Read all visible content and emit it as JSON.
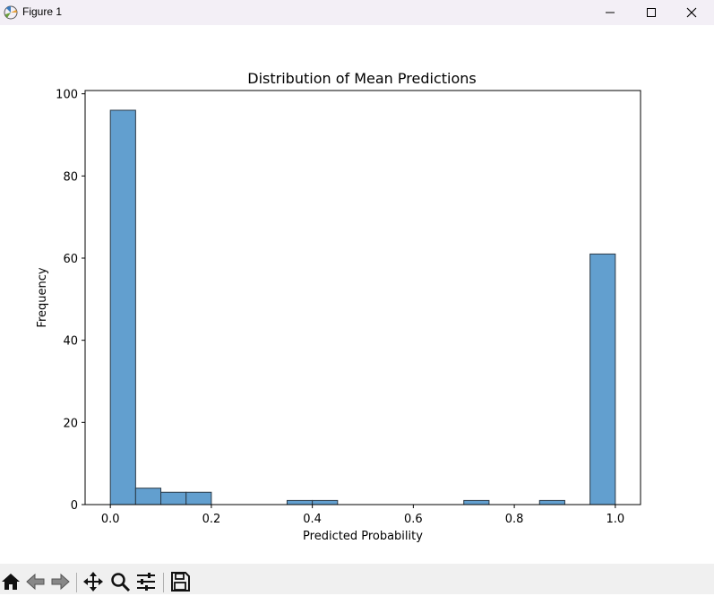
{
  "window": {
    "title": "Figure 1"
  },
  "toolbar": {
    "buttons": [
      "home-icon",
      "back-arrow-icon",
      "forward-arrow-icon",
      "pan-icon",
      "zoom-icon",
      "configure-subplots-icon",
      "save-icon"
    ]
  },
  "colors": {
    "bar_fill": "#629fcf",
    "bar_edge": "#2b3a47"
  },
  "chart_data": {
    "type": "bar",
    "title": "Distribution of Mean Predictions",
    "xlabel": "Predicted Probability",
    "ylabel": "Frequency",
    "xlim": [
      -0.05,
      1.05
    ],
    "ylim": [
      0,
      100.8
    ],
    "x_ticks": [
      0.0,
      0.2,
      0.4,
      0.6,
      0.8,
      1.0
    ],
    "x_tick_labels": [
      "0.0",
      "0.2",
      "0.4",
      "0.6",
      "0.8",
      "1.0"
    ],
    "y_ticks": [
      0,
      20,
      40,
      60,
      80,
      100
    ],
    "y_tick_labels": [
      "0",
      "20",
      "40",
      "60",
      "80",
      "100"
    ],
    "bin_edges": [
      0.0,
      0.05,
      0.1,
      0.15,
      0.2,
      0.25,
      0.3,
      0.35,
      0.4,
      0.45,
      0.5,
      0.55,
      0.6,
      0.65,
      0.7,
      0.75,
      0.8,
      0.85,
      0.9,
      0.95,
      1.0
    ],
    "values": [
      96,
      4,
      3,
      3,
      0,
      0,
      0,
      1,
      1,
      0,
      0,
      0,
      0,
      0,
      1,
      0,
      0,
      1,
      0,
      61
    ],
    "grid": false,
    "legend": false
  }
}
